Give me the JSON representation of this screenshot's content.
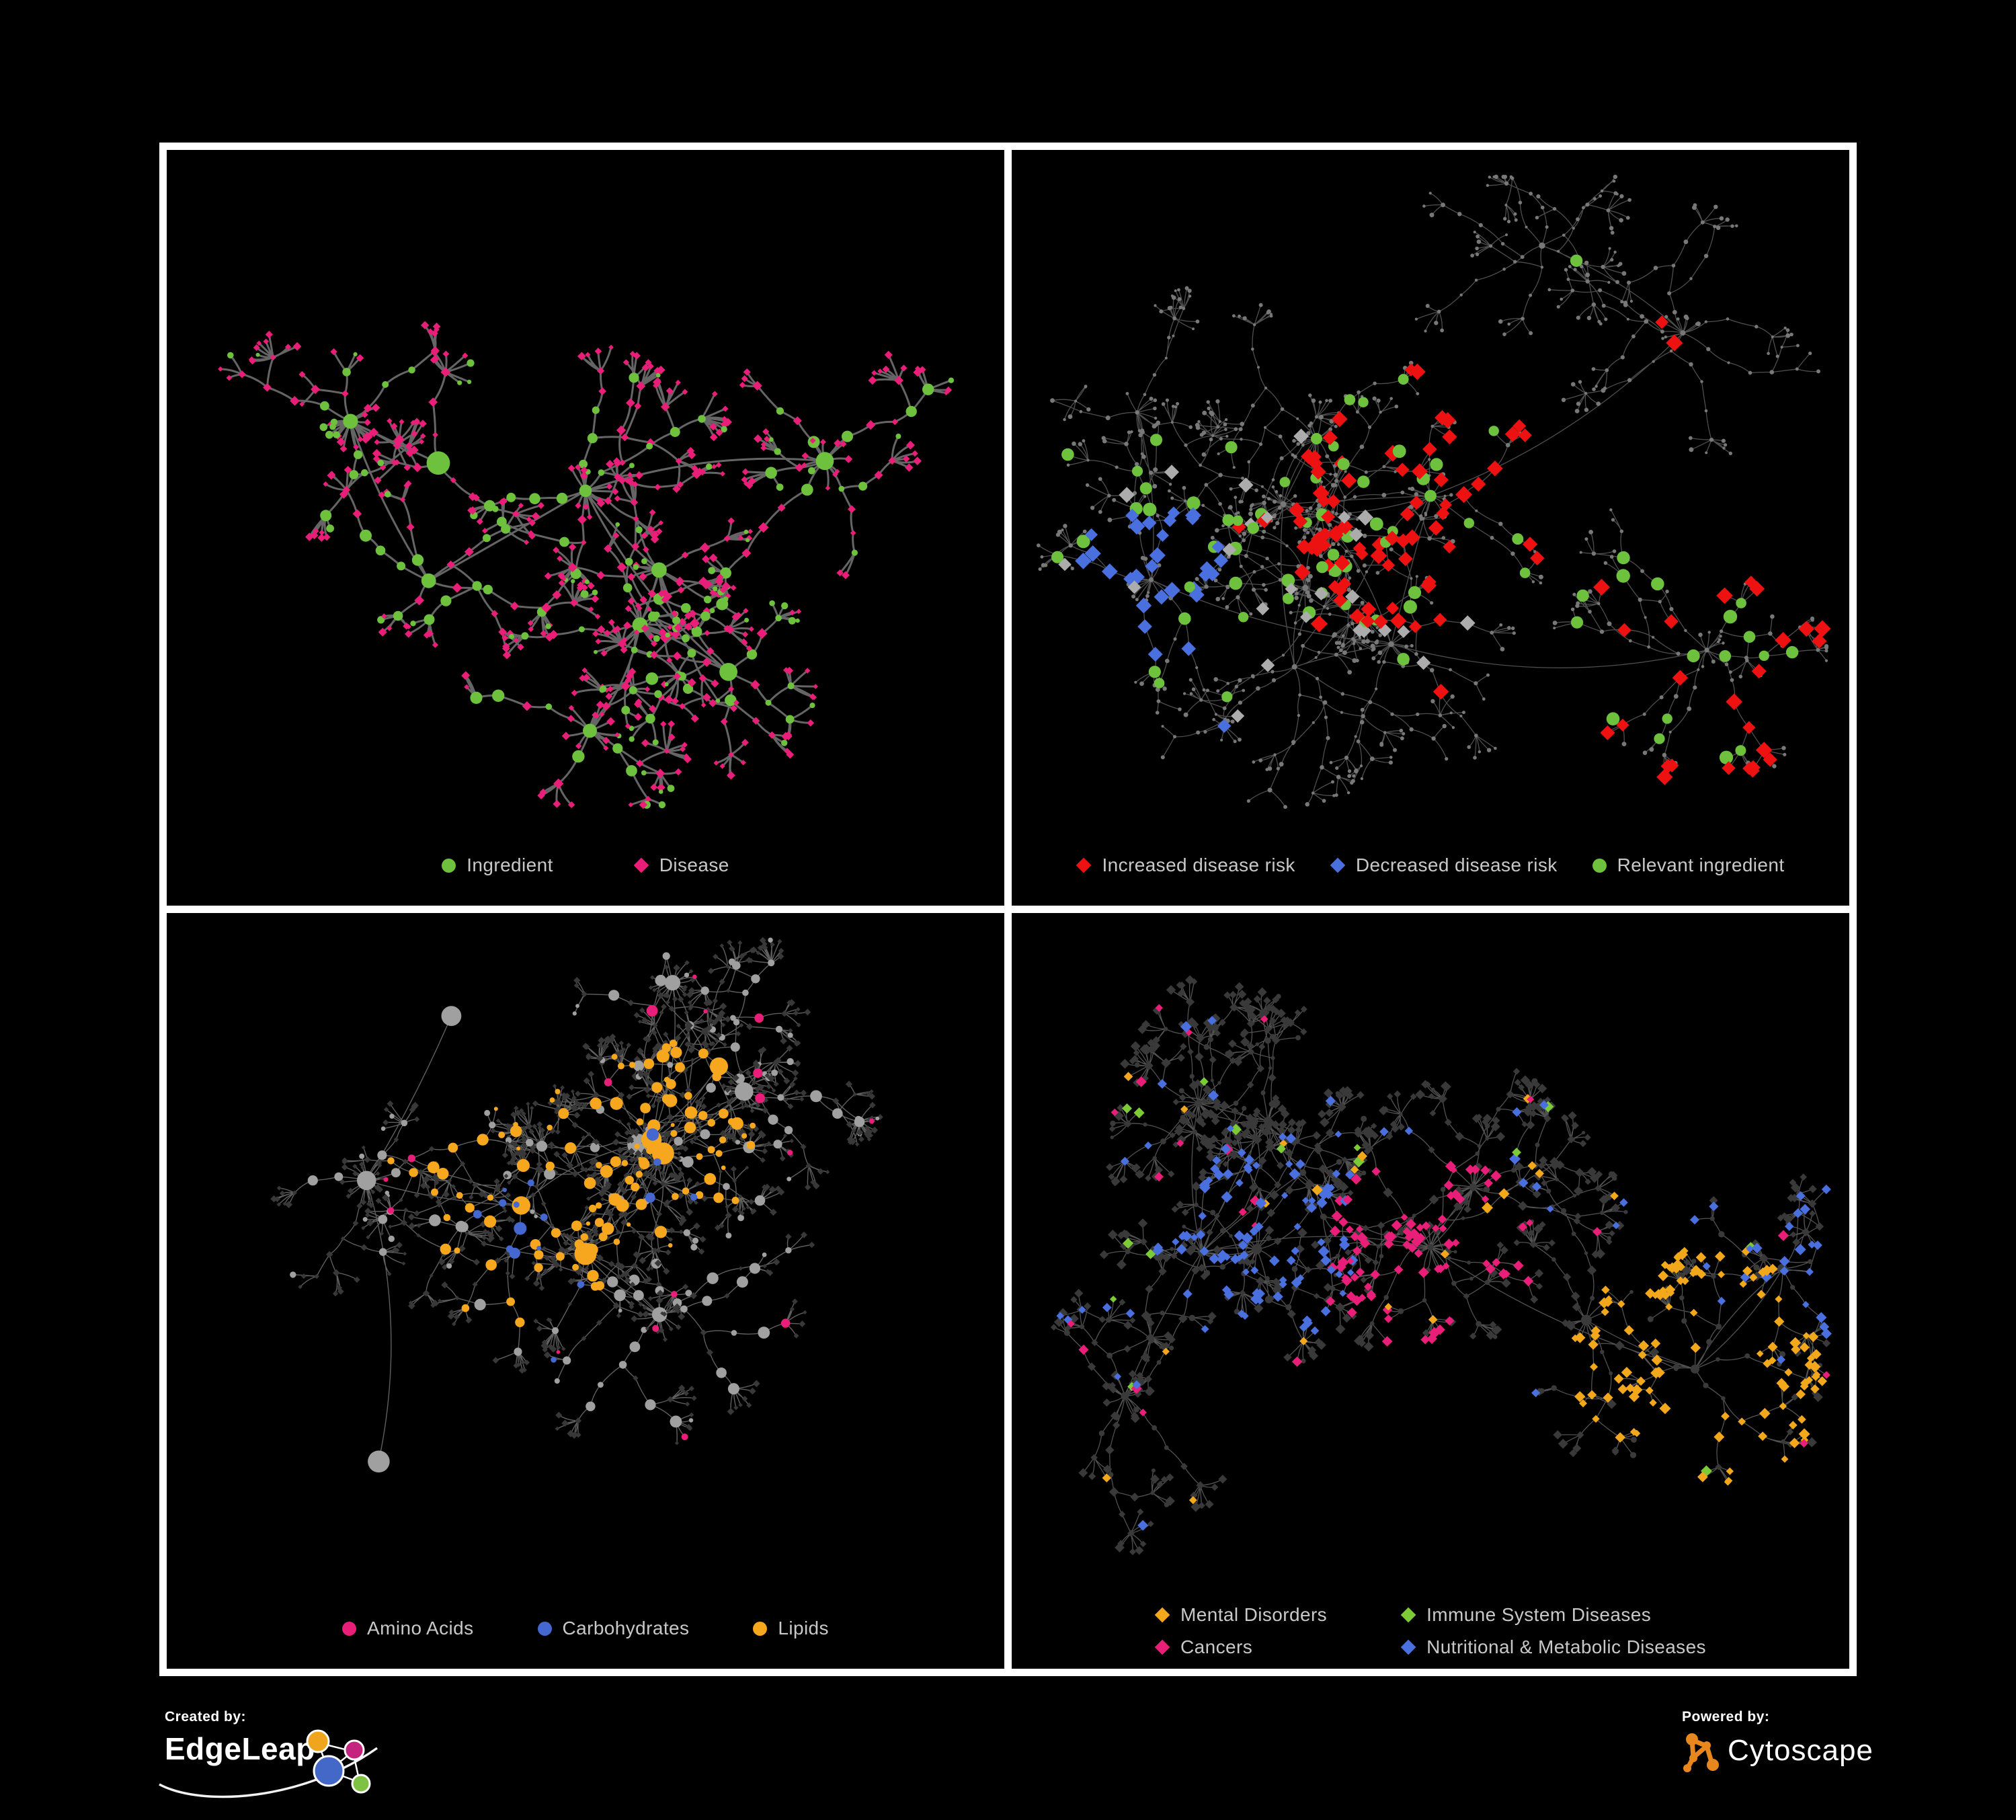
{
  "page": {
    "background": "#000000",
    "frame_color": "#FFFFFF",
    "legend_text_color": "#C8C8C8"
  },
  "colors": {
    "green": "#6EC13C",
    "pink": "#E91E78",
    "red": "#EE1111",
    "blue": "#4A6FDE",
    "orange": "#F3A81B",
    "lime": "#7CCB36",
    "silver": "#ACACAC"
  },
  "panels": [
    {
      "id": "ingredient-disease",
      "legend": [
        {
          "label": "Ingredient",
          "shape": "circle",
          "color": "#6EC13C"
        },
        {
          "label": "Disease",
          "shape": "diamond",
          "color": "#E91E78"
        }
      ],
      "net": {
        "seed": 7,
        "hubs": 9,
        "spread": 0.27,
        "squish": 0.85,
        "step": 38,
        "depthMin": 2,
        "depthMax": 5,
        "branchMin": 3,
        "branchMax": 5,
        "branchProb": 0.32,
        "leafDist": 28,
        "fanMin": 2,
        "fanMax": 6,
        "starProb": 0.55,
        "starMin": 9,
        "starMax": 18,
        "midIngProb": 0.45,
        "leafIngProb": 0.15,
        "bottomPad": 150,
        "maxNodes": 760,
        "style": {
          "mode": "roles",
          "edge": "#6A6A6A",
          "edgeWidth": 3.0,
          "edgeOpacity": 0.95,
          "ing": "#6EC13C",
          "dis": "#E91E78",
          "hubR": 11,
          "midR": 6.2,
          "leafS": 4.7
        }
      }
    },
    {
      "id": "disease-risk",
      "legend": [
        {
          "label": "Increased disease risk",
          "shape": "diamond",
          "color": "#EE1111"
        },
        {
          "label": "Decreased disease risk",
          "shape": "diamond",
          "color": "#4A6FDE"
        },
        {
          "label": "Relevant ingredient",
          "shape": "circle",
          "color": "#6EC13C"
        }
      ],
      "net": {
        "seed": 21,
        "hubs": 12,
        "spread": 0.33,
        "squish": 0.8,
        "step": 34,
        "depthMin": 3,
        "depthMax": 6,
        "branchMin": 3,
        "branchMax": 6,
        "branchProb": 0.3,
        "leafDist": 24,
        "fanMin": 2,
        "fanMax": 5,
        "starProb": 0.5,
        "starMin": 8,
        "starMax": 16,
        "midIngProb": 0.42,
        "leafIngProb": 0.15,
        "bottomPad": 135,
        "maxNodes": 1250,
        "style": {
          "mode": "dim",
          "edge": "#525252",
          "edgeWidth": 1.3,
          "edgeOpacity": 0.95,
          "base": "#787878",
          "baseR": 2.6
        },
        "clusters": [
          {
            "role": "dis",
            "shape": "diamond",
            "color": "#EE1111",
            "centers": [
              0,
              5
            ],
            "radius": 210,
            "p": 0.3,
            "scatter": 0.012,
            "size": 11
          },
          {
            "role": "dis",
            "shape": "diamond",
            "color": "#4A6FDE",
            "centers": [
              3
            ],
            "radius": 120,
            "p": 0.6,
            "scatter": 0.004,
            "size": 11
          },
          {
            "role": "dis",
            "shape": "diamond",
            "color": "#ACACAC",
            "centers": [
              0,
              3
            ],
            "radius": 260,
            "p": 0.06,
            "scatter": 0.004,
            "size": 10.5
          },
          {
            "role": "ing",
            "shape": "circle",
            "color": "#6EC13C",
            "centers": [
              0,
              5,
              3
            ],
            "radius": 250,
            "p": 0.4,
            "scatter": 0.015,
            "size": 9
          }
        ]
      }
    },
    {
      "id": "nutrient-classes",
      "legend": [
        {
          "label": "Amino Acids",
          "shape": "circle",
          "color": "#E91E78"
        },
        {
          "label": "Carbohydrates",
          "shape": "circle",
          "color": "#4468D0"
        },
        {
          "label": "Lipids",
          "shape": "circle",
          "color": "#F6A71E"
        }
      ],
      "net": {
        "seed": 33,
        "hubs": 12,
        "spread": 0.33,
        "squish": 0.8,
        "step": 34,
        "depthMin": 3,
        "depthMax": 6,
        "branchMin": 3,
        "branchMax": 6,
        "branchProb": 0.3,
        "leafDist": 24,
        "fanMin": 3,
        "fanMax": 7,
        "starProb": 0.6,
        "starMin": 10,
        "starMax": 22,
        "midIngProb": 0.52,
        "leafIngProb": 0.1,
        "bottomPad": 150,
        "maxNodes": 1250,
        "style": {
          "mode": "ingc",
          "edge": "#707070",
          "edgeWidth": 1.4,
          "edgeOpacity": 0.85,
          "ingBase": "#A0A0A0",
          "disBase": "#383838",
          "disS": 4.2,
          "hubR": 11,
          "midR": 6
        },
        "clusters": [
          {
            "role": "ing",
            "shape": "circle",
            "color": "#4468D0",
            "centers": [
              1
            ],
            "radius": 85,
            "p": 0.5,
            "scatter": 0.012
          },
          {
            "role": "ing",
            "shape": "circle",
            "color": "#F6A71E",
            "centers": [
              1,
              4
            ],
            "radius": 175,
            "p": 0.72,
            "scatter": 0.035
          },
          {
            "role": "ing",
            "shape": "circle",
            "color": "#E91E78",
            "scatter": 0.08
          }
        ]
      }
    },
    {
      "id": "disease-classes",
      "legend": [
        {
          "label": "Mental Disorders",
          "shape": "diamond",
          "color": "#F3A81B"
        },
        {
          "label": "Immune System Diseases",
          "shape": "diamond",
          "color": "#7CCB36"
        },
        {
          "label": "Cancers",
          "shape": "diamond",
          "color": "#E91E78"
        },
        {
          "label": "Nutritional & Metabolic Diseases",
          "shape": "diamond",
          "color": "#4A6FDE"
        }
      ],
      "net": {
        "seed": 44,
        "hubs": 12,
        "spread": 0.33,
        "squish": 0.8,
        "step": 34,
        "depthMin": 3,
        "depthMax": 6,
        "branchMin": 3,
        "branchMax": 6,
        "branchProb": 0.3,
        "leafDist": 24,
        "fanMin": 3,
        "fanMax": 7,
        "starProb": 0.55,
        "starMin": 9,
        "starMax": 20,
        "midIngProb": 0.3,
        "leafIngProb": 0.1,
        "bottomPad": 170,
        "maxNodes": 1250,
        "style": {
          "mode": "disc",
          "edge": "#666666",
          "edgeWidth": 1.3,
          "edgeOpacity": 0.8,
          "disBase": "#393939",
          "disS": 6.0,
          "ingBase": "#3A3A3A",
          "ingR": 3.6
        },
        "clusters": [
          {
            "role": "dis",
            "shape": "diamond",
            "color": "#F3A81B",
            "centers": [
              1
            ],
            "radius": 195,
            "p": 0.8,
            "scatter": 0.02
          },
          {
            "role": "dis",
            "shape": "diamond",
            "color": "#E91E78",
            "centers": [
              0
            ],
            "radius": 155,
            "p": 0.6,
            "scatter": 0.02
          },
          {
            "role": "dis",
            "shape": "diamond",
            "color": "#4A6FDE",
            "centers": [
              4,
              7
            ],
            "radius": 150,
            "p": 0.55,
            "scatter": 0.06
          },
          {
            "role": "dis",
            "shape": "diamond",
            "color": "#7CCB36",
            "scatter": 0.014
          }
        ]
      }
    }
  ],
  "footer": {
    "created_by_label": "Created by:",
    "created_by_name": "EdgeLeap",
    "powered_by_label": "Powered by:",
    "powered_by_name": "Cytoscape",
    "edgeleap_logo_colors": {
      "orange": "#F0A51E",
      "magenta": "#C5247E",
      "blue": "#4468C8",
      "green": "#7DC242"
    },
    "cytoscape_logo_color": "#E8871E"
  }
}
